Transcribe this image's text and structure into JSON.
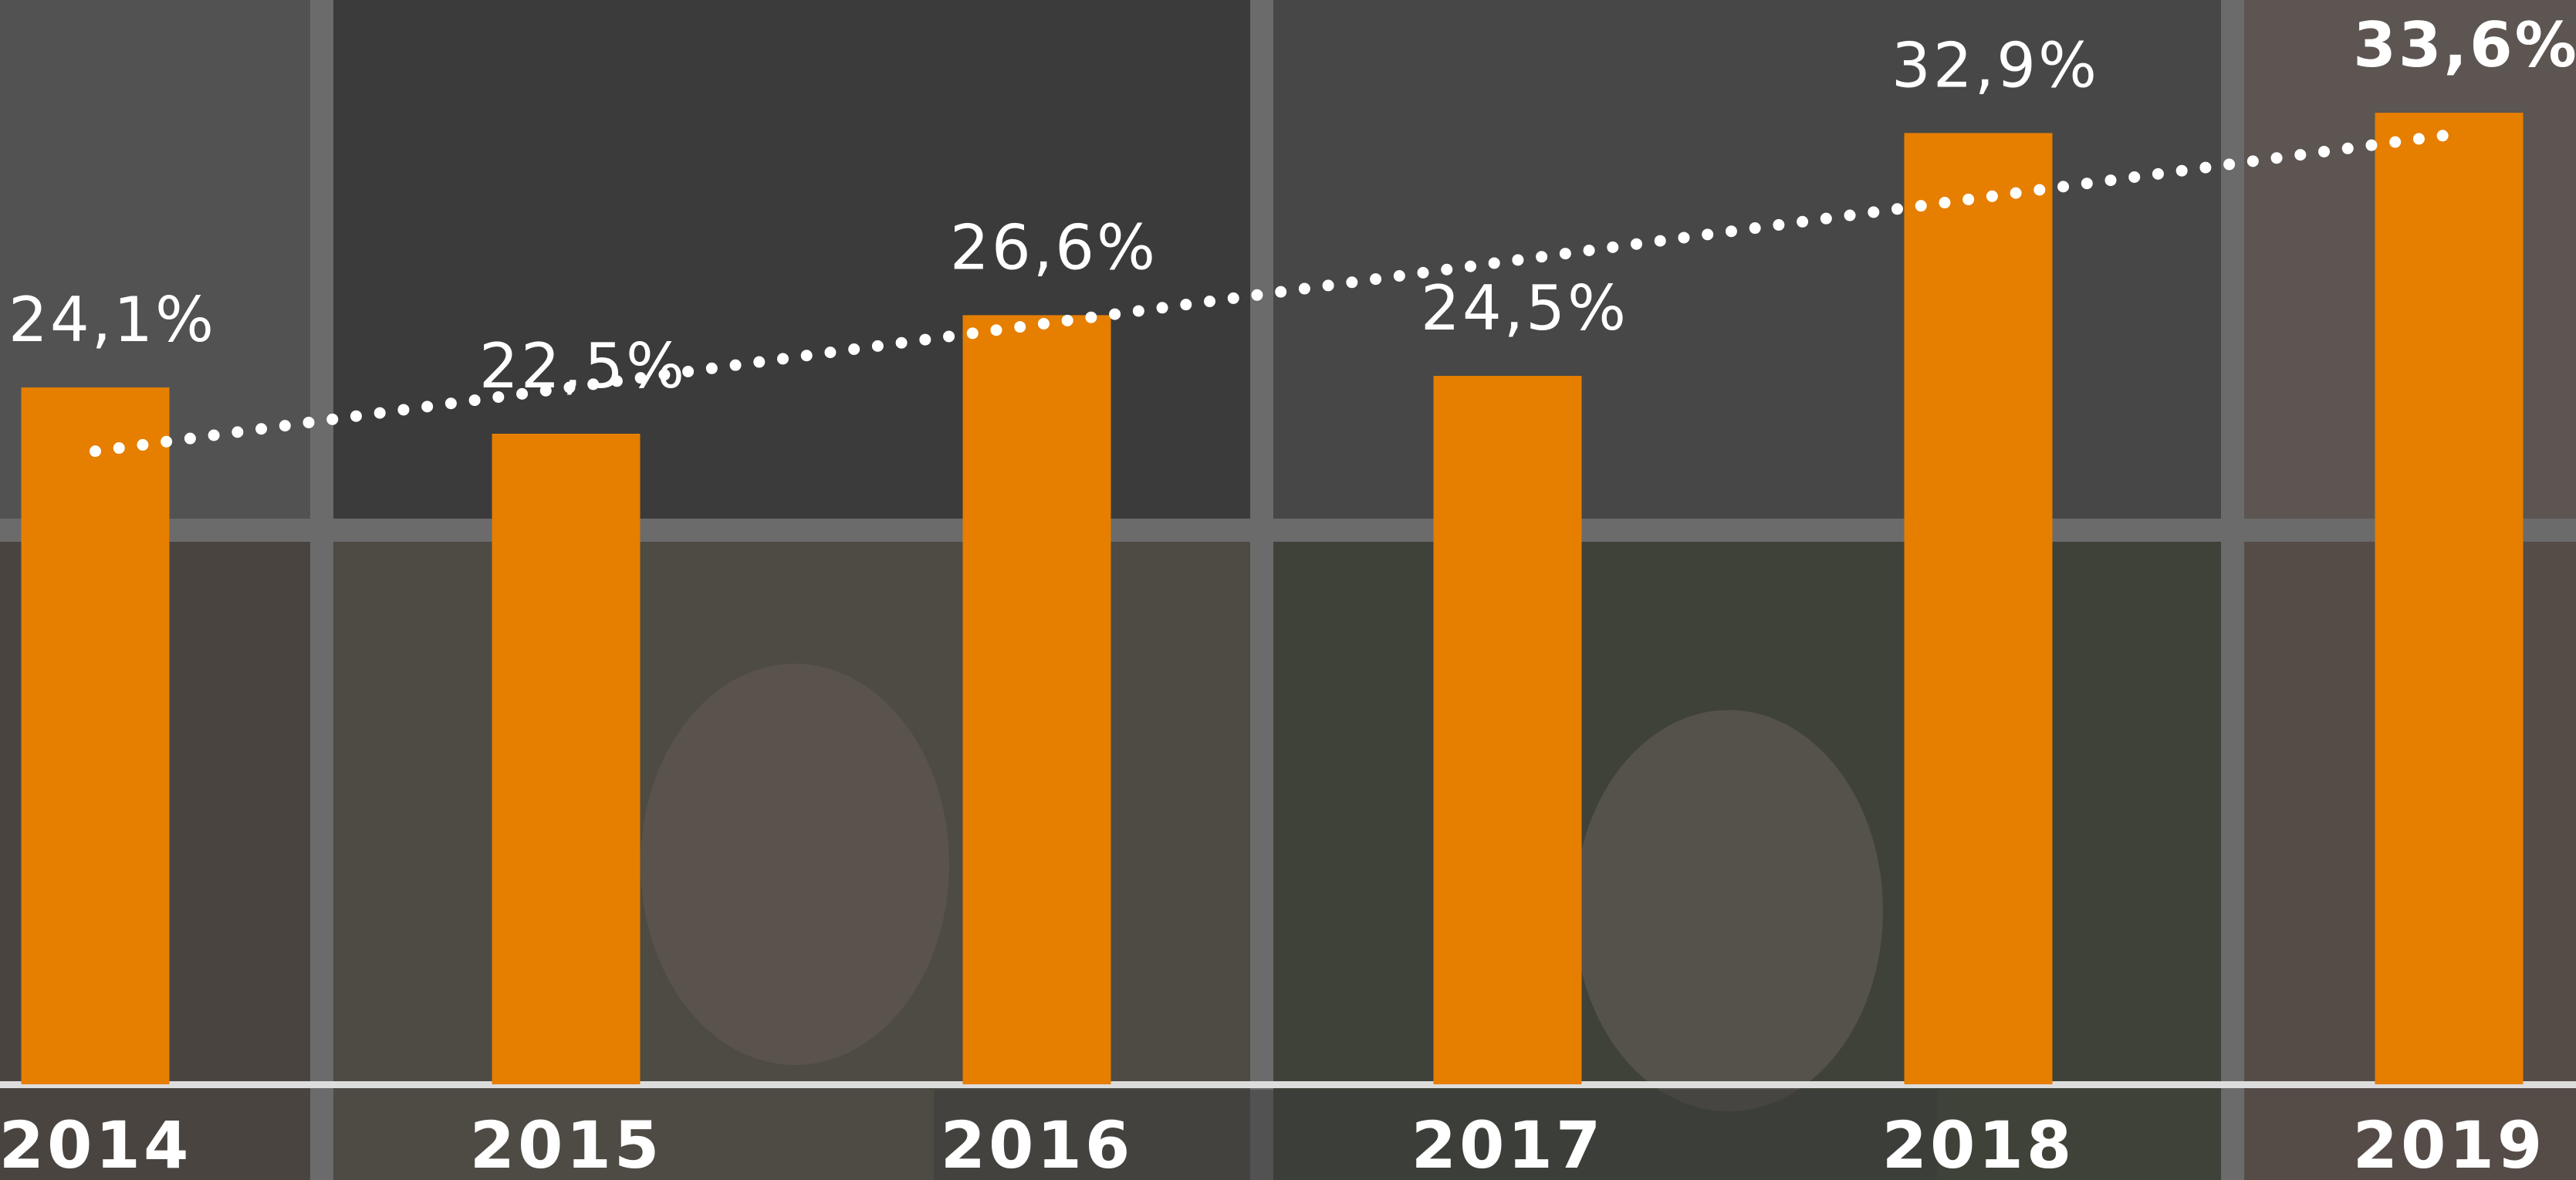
{
  "chart_data": {
    "type": "bar",
    "categories": [
      "2014",
      "2015",
      "2016",
      "2017",
      "2018",
      "2019"
    ],
    "values": [
      24.1,
      22.5,
      26.6,
      24.5,
      32.9,
      33.6
    ],
    "value_labels": [
      "24,1%",
      "22,5%",
      "26,6%",
      "24,5%",
      "32,9%",
      "33,6%"
    ],
    "color": "#e67e00",
    "ylim": [
      0,
      37.5
    ],
    "trend_line": true
  }
}
